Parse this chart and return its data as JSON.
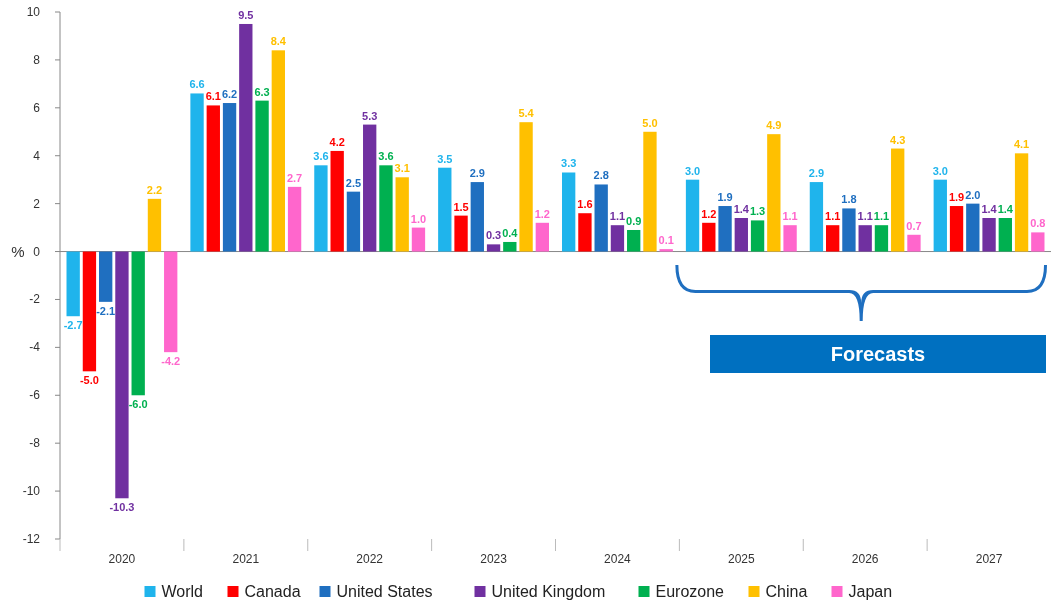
{
  "chart_data": {
    "type": "bar",
    "ylabel": "%",
    "categories": [
      "2020",
      "2021",
      "2022",
      "2023",
      "2024",
      "2025",
      "2026",
      "2027"
    ],
    "ylim": [
      -12,
      10
    ],
    "yticks": [
      -12,
      -10,
      -8,
      -6,
      -4,
      -2,
      0,
      2,
      4,
      6,
      8,
      10
    ],
    "legend": "bottom",
    "annotations": [
      "Forecasts"
    ],
    "series": [
      {
        "name": "World",
        "color": "#1fb4ec",
        "values": [
          -2.7,
          6.6,
          3.6,
          3.5,
          3.3,
          3.0,
          2.9,
          3.0
        ],
        "value_labels": [
          "-2.7",
          "6.6",
          "3.6",
          "3.5",
          "3.3",
          "3.0",
          "2.9",
          "3.0"
        ]
      },
      {
        "name": "Canada",
        "color": "#ff0000",
        "values": [
          -5.0,
          6.1,
          4.2,
          1.5,
          1.6,
          1.2,
          1.1,
          1.9
        ],
        "value_labels": [
          "-5.0",
          "6.1",
          "4.2",
          "1.5",
          "1.6",
          "1.2",
          "1.1",
          "1.9"
        ]
      },
      {
        "name": "United States",
        "color": "#1f6fc0",
        "values": [
          -2.1,
          6.2,
          2.5,
          2.9,
          2.8,
          1.9,
          1.8,
          2.0
        ],
        "value_labels": [
          "-2.1",
          "6.2",
          "2.5",
          "2.9",
          "2.8",
          "1.9",
          "1.8",
          "2.0"
        ]
      },
      {
        "name": "United Kingdom",
        "color": "#7030a0",
        "values": [
          -10.3,
          9.5,
          5.3,
          0.3,
          1.1,
          1.4,
          1.1,
          1.4
        ],
        "value_labels": [
          "-10.3",
          "9.5",
          "5.3",
          "0.3",
          "1.1",
          "1.4",
          "1.1",
          "1.4"
        ]
      },
      {
        "name": "Eurozone",
        "color": "#00b050",
        "values": [
          -6.0,
          6.3,
          3.6,
          0.4,
          0.9,
          1.3,
          1.1,
          1.4
        ],
        "value_labels": [
          "-6.0",
          "6.3",
          "3.6",
          "0.4",
          "0.9",
          "1.3",
          "1.1",
          "1.4"
        ]
      },
      {
        "name": "China",
        "color": "#ffc000",
        "values": [
          2.2,
          8.4,
          3.1,
          5.4,
          5.0,
          4.9,
          4.3,
          4.1
        ],
        "value_labels": [
          "2.2",
          "8.4",
          "3.1",
          "5.4",
          "5.0",
          "4.9",
          "4.3",
          "4.1"
        ]
      },
      {
        "name": "Japan",
        "color": "#ff66cc",
        "values": [
          -4.2,
          2.7,
          1.0,
          1.2,
          0.1,
          1.1,
          0.7,
          0.8
        ],
        "value_labels": [
          "-4.2",
          "2.7",
          "1.0",
          "1.2",
          "0.1",
          "1.1",
          "0.7",
          "0.8"
        ]
      }
    ]
  }
}
